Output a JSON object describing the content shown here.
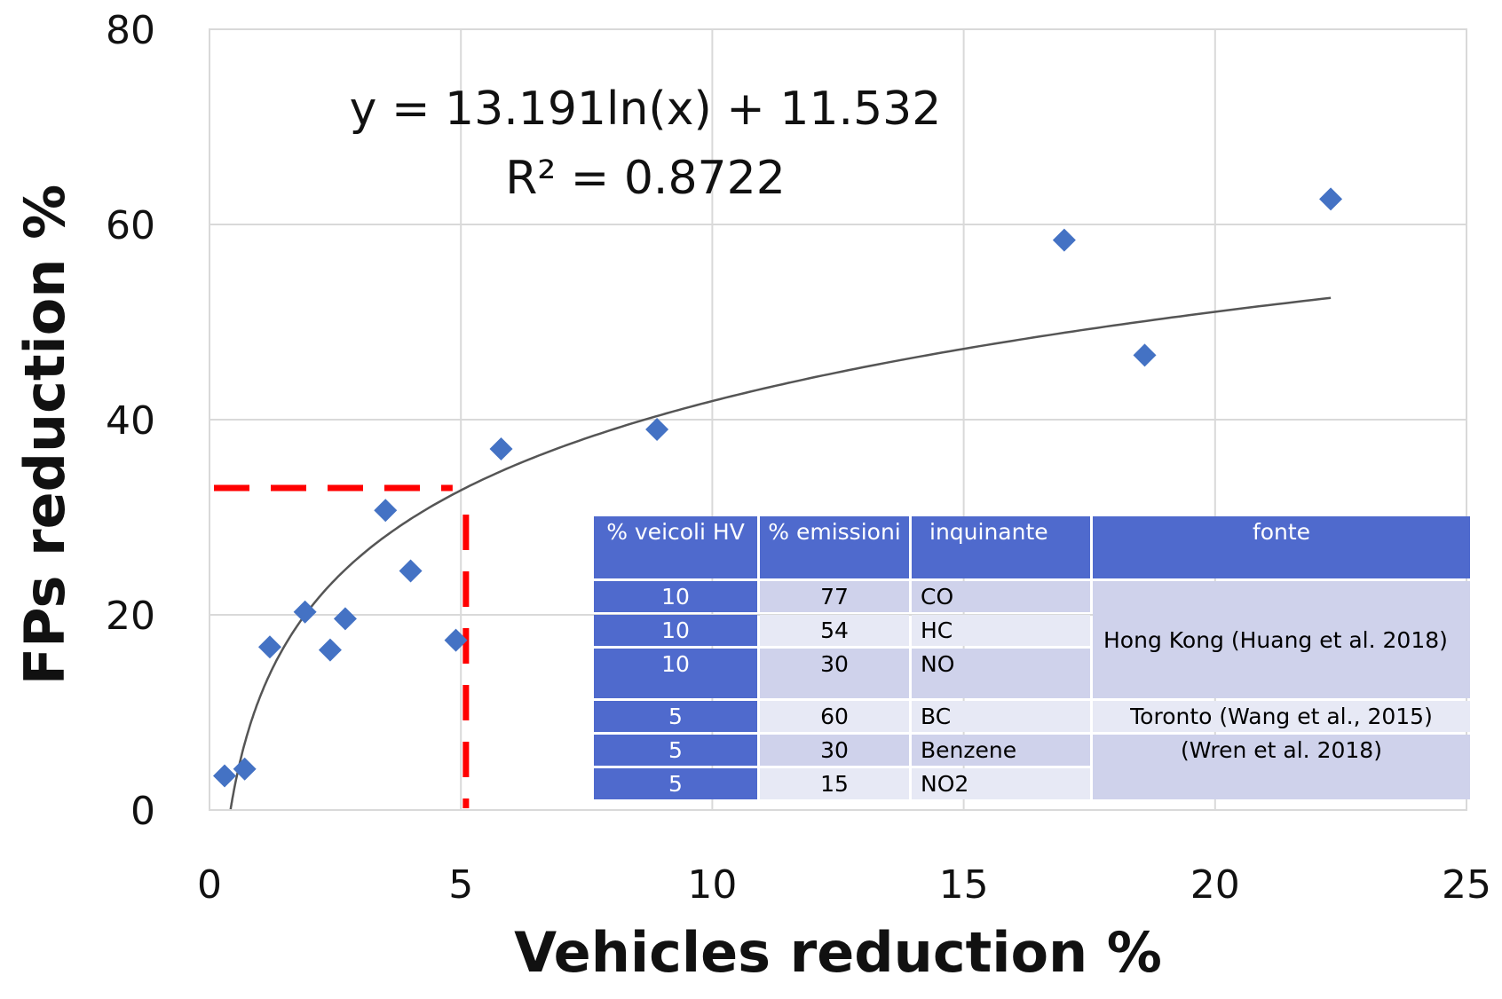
{
  "chart_data": {
    "type": "scatter",
    "xlabel": "Vehicles reduction %",
    "ylabel": "FPs reduction %",
    "xlim": [
      0,
      25
    ],
    "ylim": [
      0,
      80
    ],
    "x_ticks": [
      "0",
      "5",
      "10",
      "15",
      "20",
      "25"
    ],
    "y_ticks": [
      "0",
      "20",
      "40",
      "60",
      "80"
    ],
    "grid": true,
    "marker": "diamond",
    "marker_color": "#4472c4",
    "series": [
      {
        "points": [
          {
            "x": 0.3,
            "y": 3.5
          },
          {
            "x": 0.7,
            "y": 4.2
          },
          {
            "x": 1.2,
            "y": 16.7
          },
          {
            "x": 1.9,
            "y": 20.3
          },
          {
            "x": 2.4,
            "y": 16.4
          },
          {
            "x": 2.7,
            "y": 19.6
          },
          {
            "x": 3.5,
            "y": 30.7
          },
          {
            "x": 4.0,
            "y": 24.5
          },
          {
            "x": 4.9,
            "y": 17.4
          },
          {
            "x": 5.8,
            "y": 37.0
          },
          {
            "x": 8.9,
            "y": 39.0
          },
          {
            "x": 17.0,
            "y": 58.4
          },
          {
            "x": 18.6,
            "y": 46.6
          },
          {
            "x": 22.3,
            "y": 62.6
          }
        ]
      }
    ],
    "trendline": {
      "type": "logarithmic",
      "a": 13.191,
      "b": 11.532,
      "x_range": [
        0.42,
        22.3
      ],
      "color": "#555555",
      "equation_label": "y = 13.191ln(x) + 11.532",
      "r2_label": "R² = 0.8722"
    },
    "reference_lines": {
      "color": "#ff0000",
      "style": "dashed",
      "horizontal_y": 33,
      "vertical_x": 5.1
    }
  },
  "inset_table": {
    "header_color": "#4f6acd",
    "headers": [
      "% veicoli HV",
      "% emissioni",
      "inquinante",
      "fonte"
    ],
    "rows": [
      {
        "hv": "10",
        "emissioni": "77",
        "inquinante": "CO"
      },
      {
        "hv": "10",
        "emissioni": "54",
        "inquinante": "HC"
      },
      {
        "hv": "10",
        "emissioni": "30",
        "inquinante": "NO"
      },
      {
        "hv": "5",
        "emissioni": "60",
        "inquinante": "BC"
      },
      {
        "hv": "5",
        "emissioni": "30",
        "inquinante": "Benzene"
      },
      {
        "hv": "5",
        "emissioni": "15",
        "inquinante": "NO2"
      }
    ],
    "fonte_hk": "Hong Kong (Huang et al. 2018)",
    "fonte_toronto_1": "Toronto (Wang et al., 2015)",
    "fonte_toronto_2": "(Wren et al. 2018)"
  }
}
